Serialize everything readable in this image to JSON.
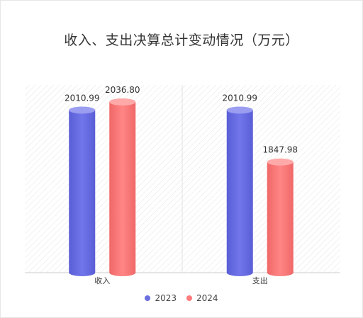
{
  "chart_data": {
    "type": "bar",
    "title": "收入、支出决算总计变动情况（万元）",
    "categories": [
      "收入",
      "支出"
    ],
    "series": [
      {
        "name": "2023",
        "values": [
          2010.99,
          2010.99
        ],
        "labels": [
          "2010.99",
          "2010.99"
        ],
        "color": "#6b6fe0"
      },
      {
        "name": "2024",
        "values": [
          2036.8,
          1847.98
        ],
        "labels": [
          "2036.80",
          "1847.98"
        ],
        "color": "#ff7b7b"
      }
    ],
    "ylim": [
      1500,
      2050
    ],
    "grid": false,
    "legend_position": "bottom"
  }
}
